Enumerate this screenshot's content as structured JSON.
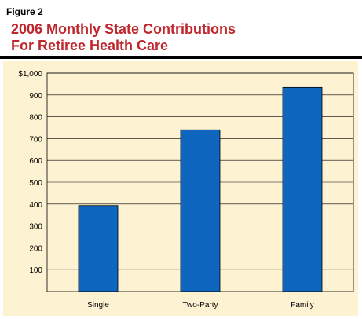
{
  "figure_label": "Figure 2",
  "title_lines": [
    "2006 Monthly State Contributions",
    "For Retiree Health Care"
  ],
  "colors": {
    "title": "#c0272d",
    "panel_background": "#fdf2d2",
    "bar": "#0f66bf",
    "gridline": "#000000"
  },
  "chart_data": {
    "type": "bar",
    "title": "2006 Monthly State Contributions For Retiree Health Care",
    "categories": [
      "Single",
      "Two-Party",
      "Family"
    ],
    "values": [
      393,
      740,
      934
    ],
    "ylim": [
      0,
      1000
    ],
    "yticks": [
      100,
      200,
      300,
      400,
      500,
      600,
      700,
      800,
      900,
      1000
    ],
    "ytick_labels": [
      "100",
      "200",
      "300",
      "400",
      "500",
      "600",
      "700",
      "800",
      "900",
      "$1,000"
    ],
    "grid": true,
    "xlabel": "",
    "ylabel": ""
  }
}
